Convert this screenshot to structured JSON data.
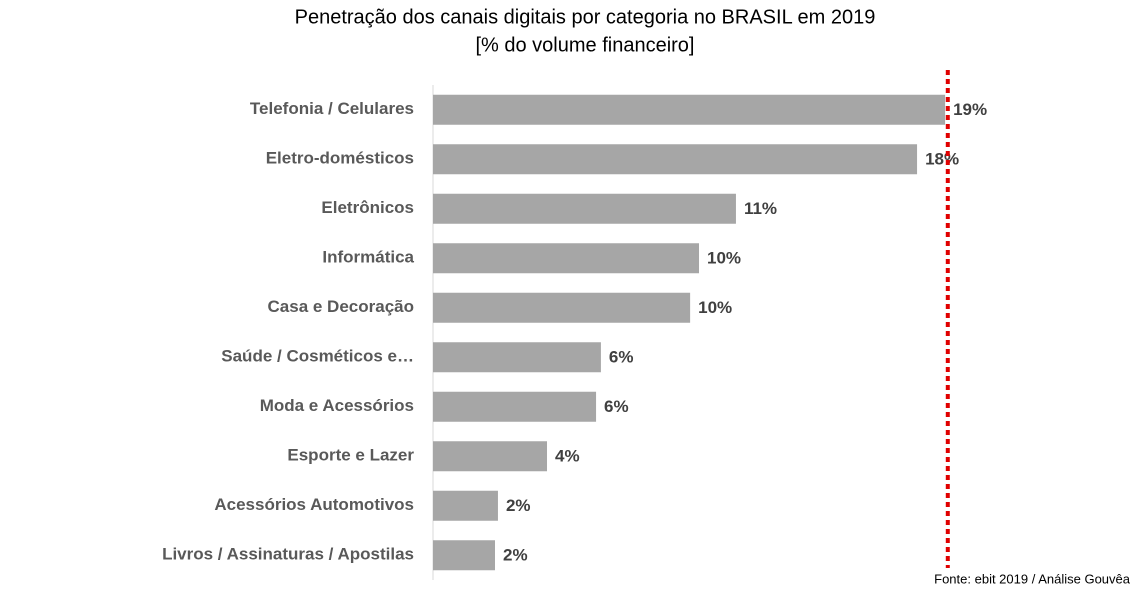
{
  "chart_data": {
    "type": "bar",
    "orientation": "horizontal",
    "title": "Penetração dos canais digitais por categoria no BRASIL em 2019",
    "subtitle": "[% do volume financeiro]",
    "categories": [
      "Telefonia / Celulares",
      "Eletro-domésticos",
      "Eletrônicos",
      "Informática",
      "Casa e Decoração",
      "Saúde / Cosméticos e…",
      "Moda e Acessórios",
      "Esporte e Lazer",
      "Acessórios Automotivos",
      "Livros / Assinaturas / Apostilas"
    ],
    "values": [
      19.0,
      17.96,
      11.24,
      9.87,
      9.54,
      6.23,
      6.05,
      4.23,
      2.41,
      2.3
    ],
    "value_labels": [
      "19%",
      "18%",
      "11%",
      "10%",
      "10%",
      "6%",
      "6%",
      "4%",
      "2%",
      "2%"
    ],
    "color": "#a6a6a6",
    "xlim": [
      0,
      21
    ],
    "reference_line": {
      "value": 19.1,
      "color": "#e00000"
    },
    "source": "Fonte: ebit 2019 / Análise Gouvêa"
  }
}
